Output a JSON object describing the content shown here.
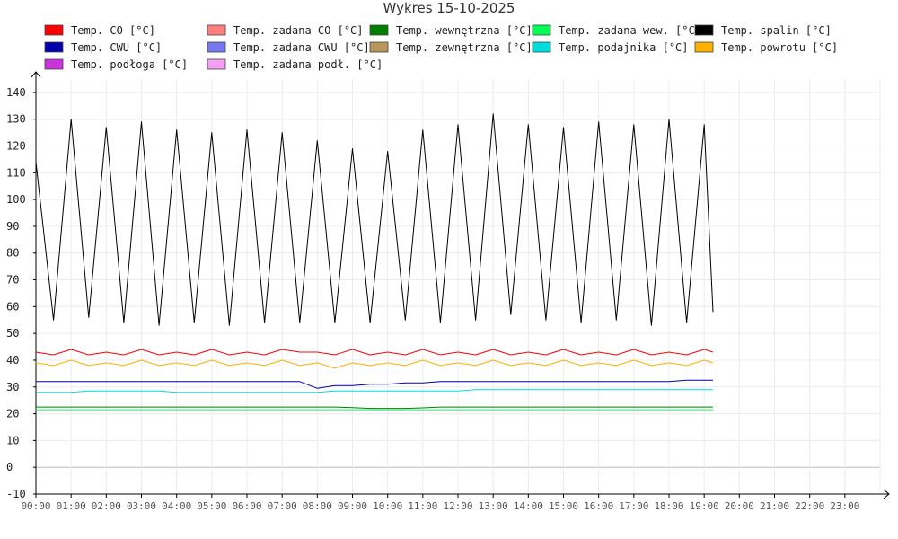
{
  "chart_data": {
    "type": "line",
    "title": "Wykres 15-10-2025",
    "xlabel": "",
    "ylabel": "",
    "xlim": [
      "00:00",
      "24:00"
    ],
    "ylim": [
      -10,
      145
    ],
    "grid": true,
    "legend_position": "top",
    "x_ticks": [
      "00:00",
      "01:00",
      "02:00",
      "03:00",
      "04:00",
      "05:00",
      "06:00",
      "07:00",
      "08:00",
      "09:00",
      "10:00",
      "11:00",
      "12:00",
      "13:00",
      "14:00",
      "15:00",
      "16:00",
      "17:00",
      "18:00",
      "19:00",
      "20:00",
      "21:00",
      "22:00",
      "23:00"
    ],
    "y_ticks": [
      -10,
      0,
      10,
      20,
      30,
      40,
      50,
      60,
      70,
      80,
      90,
      100,
      110,
      120,
      130,
      140
    ],
    "x_hours": [
      0,
      0.5,
      1,
      1.5,
      2,
      2.5,
      3,
      3.5,
      4,
      4.5,
      5,
      5.5,
      6,
      6.5,
      7,
      7.5,
      8,
      8.5,
      9,
      9.5,
      10,
      10.5,
      11,
      11.5,
      12,
      12.5,
      13,
      13.5,
      14,
      14.5,
      15,
      15.5,
      16,
      16.5,
      17,
      17.5,
      18,
      18.5,
      19,
      19.25
    ],
    "series": [
      {
        "name": "Temp. CO [°C]",
        "color": "#ff0000",
        "values": [
          43,
          42,
          44,
          42,
          43,
          42,
          44,
          42,
          43,
          42,
          44,
          42,
          43,
          42,
          44,
          43,
          43,
          42,
          44,
          42,
          43,
          42,
          44,
          42,
          43,
          42,
          44,
          42,
          43,
          42,
          44,
          42,
          43,
          42,
          44,
          42,
          43,
          42,
          44,
          43
        ]
      },
      {
        "name": "Temp. zadana CO [°C]",
        "color": "#ff7f7f",
        "values": []
      },
      {
        "name": "Temp. wewnętrzna [°C]",
        "color": "#008000",
        "values": [
          22.5,
          22.5,
          22.5,
          22.5,
          22.5,
          22.5,
          22.5,
          22.5,
          22.5,
          22.5,
          22.5,
          22.5,
          22.5,
          22.5,
          22.5,
          22.5,
          22.5,
          22.5,
          22.3,
          22,
          22,
          22,
          22.2,
          22.5,
          22.5,
          22.5,
          22.5,
          22.5,
          22.5,
          22.5,
          22.5,
          22.5,
          22.5,
          22.5,
          22.5,
          22.5,
          22.5,
          22.5,
          22.5,
          22.5
        ]
      },
      {
        "name": "Temp. zadana wew. [°C]",
        "color": "#00ff55",
        "values": [
          21.5,
          21.5,
          21.5,
          21.5,
          21.5,
          21.5,
          21.5,
          21.5,
          21.5,
          21.5,
          21.5,
          21.5,
          21.5,
          21.5,
          21.5,
          21.5,
          21.5,
          21.5,
          21.5,
          21.5,
          21.5,
          21.5,
          21.5,
          21.5,
          21.5,
          21.5,
          21.5,
          21.5,
          21.5,
          21.5,
          21.5,
          21.5,
          21.5,
          21.5,
          21.5,
          21.5,
          21.5,
          21.5,
          21.5,
          21.5
        ]
      },
      {
        "name": "Temp. spalin [°C]",
        "color": "#000000",
        "values": [
          114,
          55,
          130,
          56,
          127,
          54,
          129,
          53,
          126,
          54,
          125,
          53,
          126,
          54,
          125,
          54,
          122,
          54,
          119,
          54,
          118,
          55,
          126,
          54,
          128,
          55,
          132,
          57,
          128,
          55,
          127,
          54,
          129,
          55,
          128,
          53,
          130,
          54,
          128,
          58
        ]
      },
      {
        "name": "Temp. CWU [°C]",
        "color": "#0000aa",
        "values": [
          32,
          32,
          32,
          32,
          32,
          32,
          32,
          32,
          32,
          32,
          32,
          32,
          32,
          32,
          32,
          32,
          29.5,
          30.5,
          30.5,
          31,
          31,
          31.5,
          31.5,
          32,
          32,
          32,
          32,
          32,
          32,
          32,
          32,
          32,
          32,
          32,
          32,
          32,
          32,
          32.5,
          32.5,
          32.5
        ]
      },
      {
        "name": "Temp. zadana CWU [°C]",
        "color": "#7777ee",
        "values": []
      },
      {
        "name": "Temp. zewnętrzna [°C]",
        "color": "#b8965a",
        "values": []
      },
      {
        "name": "Temp. podajnika [°C]",
        "color": "#00dddd",
        "values": [
          28,
          28,
          28,
          28.5,
          28.5,
          28.5,
          28.5,
          28.5,
          28,
          28,
          28,
          28,
          28,
          28,
          28,
          28,
          28,
          28.5,
          28.5,
          28.5,
          28.5,
          28.5,
          28.5,
          28.5,
          28.5,
          29,
          29,
          29,
          29,
          29,
          29,
          29,
          29,
          29,
          29,
          29,
          29,
          29,
          29,
          29
        ]
      },
      {
        "name": "Temp. powrotu [°C]",
        "color": "#ffb000",
        "values": [
          39,
          38,
          40,
          38,
          39,
          38,
          40,
          38,
          39,
          38,
          40,
          38,
          39,
          38,
          40,
          38,
          39,
          37,
          39,
          38,
          39,
          38,
          40,
          38,
          39,
          38,
          40,
          38,
          39,
          38,
          40,
          38,
          39,
          38,
          40,
          38,
          39,
          38,
          40,
          39
        ]
      },
      {
        "name": "Temp. podłoga [°C]",
        "color": "#cc33dd",
        "values": []
      },
      {
        "name": "Temp. zadana podł. [°C]",
        "color": "#f4a0f4",
        "values": []
      }
    ]
  }
}
